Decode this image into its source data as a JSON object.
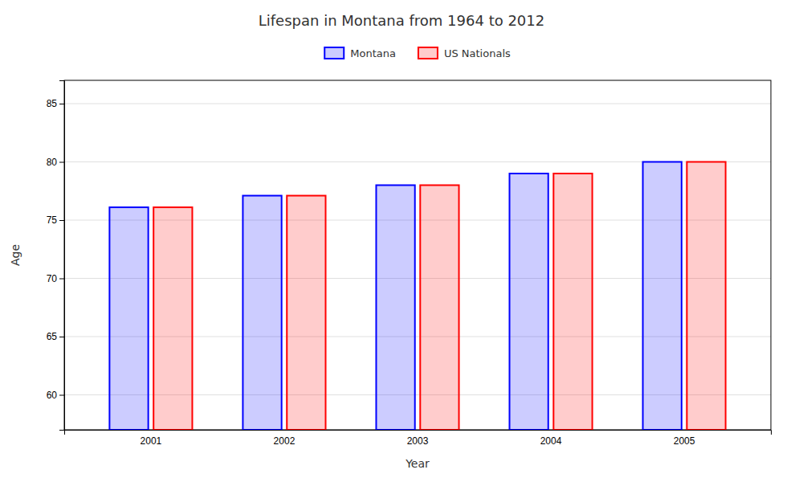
{
  "chart_data": {
    "type": "bar",
    "title": "Lifespan in Montana from 1964 to 2012",
    "xlabel": "Year",
    "ylabel": "Age",
    "categories": [
      "2001",
      "2002",
      "2003",
      "2004",
      "2005"
    ],
    "series": [
      {
        "name": "Montana",
        "color": "#0000ff",
        "values": [
          76.1,
          77.1,
          78.0,
          79.0,
          80.0
        ]
      },
      {
        "name": "US Nationals",
        "color": "#ff0000",
        "values": [
          76.1,
          77.1,
          78.0,
          79.0,
          80.0
        ]
      }
    ],
    "ylim": [
      57,
      87
    ],
    "yticks": [
      60,
      65,
      70,
      75,
      80,
      85
    ],
    "grid": true,
    "legend": "top"
  }
}
